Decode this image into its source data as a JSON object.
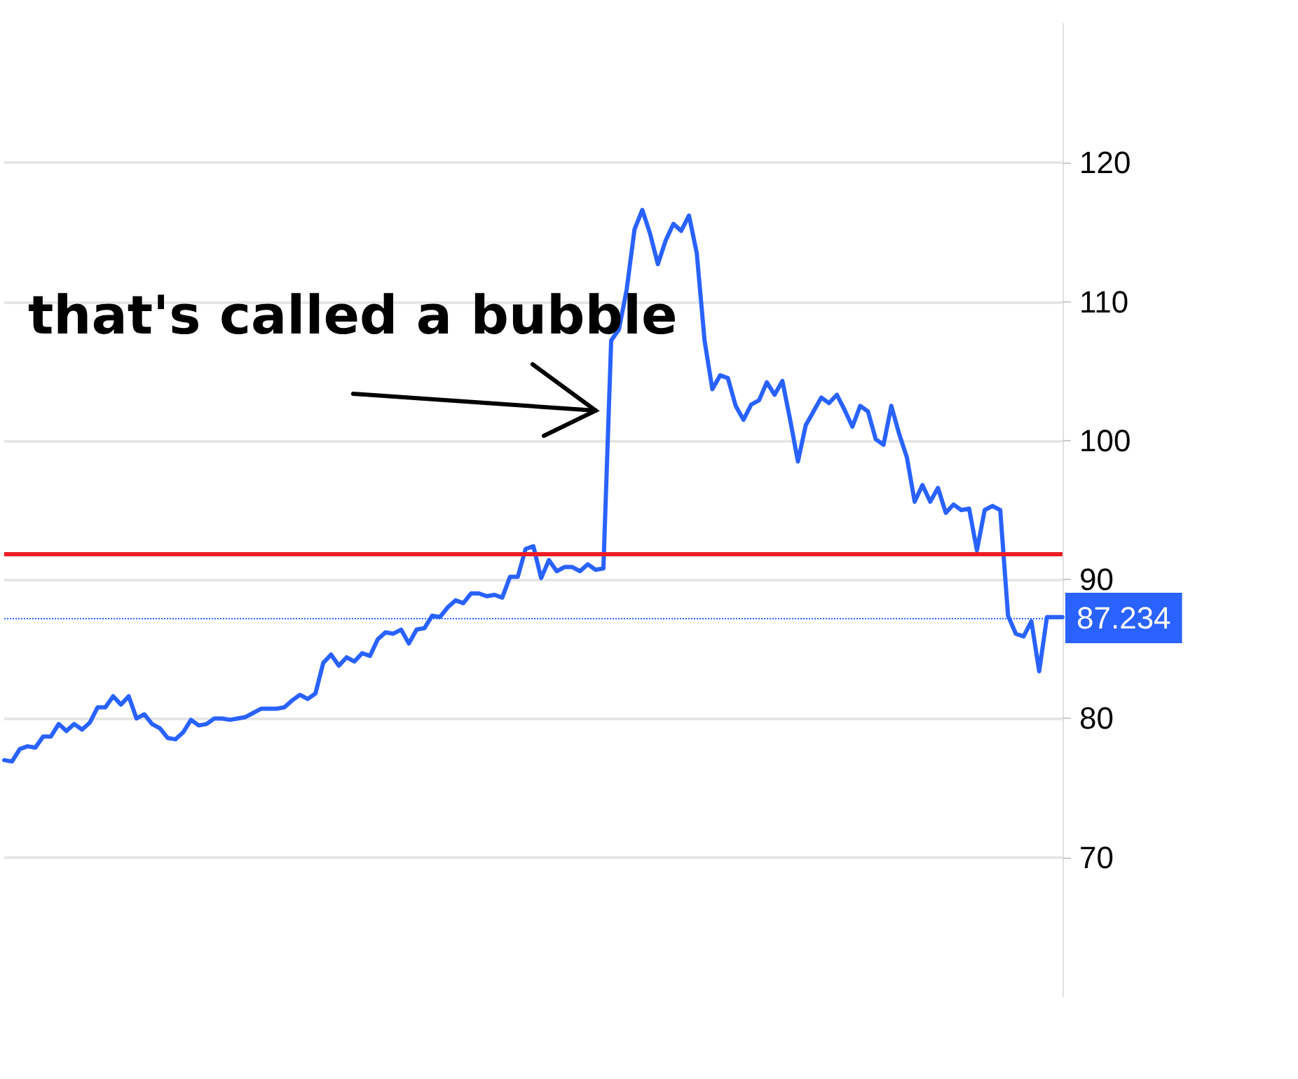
{
  "chart_data": {
    "type": "line",
    "categories": [
      null,
      null,
      null,
      null,
      null,
      null,
      null,
      null,
      null,
      null,
      null,
      null,
      null,
      null,
      null,
      null,
      null,
      null,
      null,
      null,
      null,
      null,
      null,
      null,
      null,
      null,
      null,
      null,
      null,
      null,
      null,
      null,
      null,
      null,
      null,
      null,
      null,
      null,
      null,
      null,
      null,
      null,
      null,
      null,
      null,
      null,
      null,
      null,
      null,
      null,
      null,
      null,
      null,
      null,
      null,
      null,
      null,
      null,
      null,
      null,
      null,
      null,
      null,
      null,
      null,
      null,
      null,
      null,
      null,
      null,
      null,
      null,
      null,
      null,
      null,
      null,
      null,
      null,
      null,
      null,
      null,
      null,
      null,
      null,
      null,
      null,
      null,
      null,
      null,
      null,
      null,
      null,
      null,
      null,
      null,
      null,
      null,
      null,
      null,
      null,
      null,
      null,
      null,
      null,
      null,
      null,
      null,
      null,
      null,
      null,
      null,
      null,
      null,
      null,
      null,
      null,
      null,
      null,
      null,
      null,
      null,
      null,
      null,
      null,
      null,
      null,
      null,
      null,
      null,
      null,
      null,
      null,
      null,
      null,
      null,
      null,
      null
    ],
    "series": [
      {
        "color": "#2962ff",
        "values": [
          77.0,
          76.9,
          77.8,
          78.0,
          77.9,
          78.7,
          78.7,
          79.6,
          79.1,
          79.6,
          79.2,
          79.7,
          80.8,
          80.8,
          81.6,
          81.0,
          81.6,
          80.0,
          80.3,
          79.6,
          79.3,
          78.6,
          78.5,
          79.0,
          79.9,
          79.5,
          79.6,
          80.0,
          80.0,
          79.9,
          80.0,
          80.1,
          80.4,
          80.7,
          80.7,
          80.7,
          80.8,
          81.3,
          81.7,
          81.4,
          81.8,
          84.0,
          84.6,
          83.8,
          84.4,
          84.1,
          84.7,
          84.5,
          85.7,
          86.2,
          86.1,
          86.4,
          85.4,
          86.4,
          86.5,
          87.4,
          87.3,
          88.0,
          88.5,
          88.3,
          89.0,
          89.0,
          88.8,
          88.9,
          88.7,
          90.2,
          90.2,
          92.2,
          92.4,
          90.1,
          91.4,
          90.6,
          90.9,
          90.9,
          90.6,
          91.1,
          90.7,
          90.8,
          107.2,
          108.0,
          110.9,
          115.2,
          116.6,
          114.9,
          112.7,
          114.4,
          115.6,
          115.1,
          116.2,
          113.5,
          107.2,
          103.7,
          104.7,
          104.5,
          102.5,
          101.5,
          102.6,
          102.9,
          104.2,
          103.3,
          104.3,
          101.5,
          98.5,
          101.1,
          102.1,
          103.1,
          102.7,
          103.3,
          102.2,
          101.0,
          102.5,
          102.1,
          100.1,
          99.7,
          102.5,
          100.5,
          98.8,
          95.6,
          96.8,
          95.6,
          96.6,
          94.8,
          95.4,
          95.0,
          95.1,
          92.1,
          95.0,
          95.3,
          95.0,
          87.4,
          86.1,
          85.9,
          87.0,
          83.4,
          87.3,
          87.3,
          87.3
        ]
      }
    ],
    "ylim": [
      60,
      130
    ],
    "yticks": [
      70,
      80,
      90,
      100,
      110,
      120
    ],
    "grid": "y",
    "marker": "none",
    "line_style": "solid",
    "ref_lines": [
      {
        "axis": "y",
        "value": 91.8,
        "color": "#ee1c25",
        "line_style": "solid"
      },
      {
        "axis": "y",
        "value": 87.234,
        "label": "87.234",
        "color": "#2962ff",
        "line_style": "dotted"
      }
    ],
    "annotations": [
      "that's called a bubble"
    ]
  }
}
